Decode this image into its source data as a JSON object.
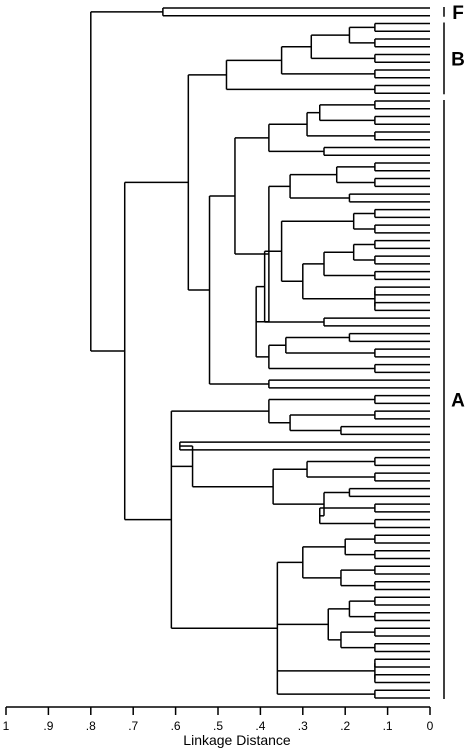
{
  "chart_data": {
    "type": "dendrogram",
    "xlabel": "Linkage Distance",
    "xlim": [
      1,
      0
    ],
    "x_ticks": [
      1,
      0.9,
      0.8,
      0.7,
      0.6,
      0.5,
      0.4,
      0.3,
      0.2,
      0.1,
      0
    ],
    "x_tick_labels": [
      "1",
      ".9",
      ".8",
      ".7",
      ".6",
      ".5",
      ".4",
      ".3",
      ".2",
      ".1",
      "0"
    ],
    "leaf_count": 90,
    "clusters": [
      {
        "label": "F",
        "leaf_range": [
          0,
          1
        ]
      },
      {
        "label": "B",
        "leaf_range": [
          2,
          11
        ]
      },
      {
        "label": "A",
        "leaf_range": [
          12,
          89
        ]
      }
    ],
    "tree": [
      0.8,
      [
        0.63,
        0,
        1
      ],
      [
        0.72,
        [
          0.57,
          [
            0.48,
            [
              0.35,
              [
                0.28,
                [
                  0.19,
                  [
                    0.13,
                    2,
                    3
                  ],
                  [
                    0.13,
                    4,
                    5
                  ]
                ],
                [
                  0.13,
                  6,
                  7
                ]
              ],
              [
                0.13,
                8,
                9
              ]
            ],
            [
              0.13,
              10,
              11
            ]
          ],
          [
            0.52,
            [
              0.46,
              [
                0.38,
                [
                  0.29,
                  [
                    0.26,
                    [
                      0.13,
                      12,
                      13
                    ],
                    [
                      0.13,
                      14,
                      15
                    ]
                  ],
                  [
                    0.13,
                    16,
                    17
                  ]
                ],
                [
                  0.25,
                  18,
                  19
                ]
              ],
              [
                0.38,
                [
                  0.33,
                  [
                    0.22,
                    [
                      0.13,
                      20,
                      21
                    ],
                    [
                      0.13,
                      22,
                      23
                    ]
                  ],
                  [
                    0.19,
                    24,
                    25
                  ]
                ],
                [
                  0.41,
                  [
                    0.39,
                    [
                      0.35,
                      [
                        0.18,
                        [
                          0.13,
                          26,
                          27
                        ],
                        [
                          0.13,
                          28,
                          29
                        ]
                      ],
                      [
                        0.3,
                        [
                          0.25,
                          [
                            0.18,
                            [
                              0.13,
                              30,
                              31
                            ],
                            [
                              0.13,
                              32,
                              33
                            ]
                          ],
                          [
                            0.13,
                            34,
                            35
                          ]
                        ],
                        [
                          0.13,
                          [
                            0.13,
                            36,
                            37
                          ],
                          [
                            0.13,
                            38,
                            39
                          ]
                        ]
                      ]
                    ],
                    [
                      0.25,
                      40,
                      41
                    ]
                  ],
                  [
                    0.38,
                    [
                      0.34,
                      [
                        0.19,
                        42,
                        43
                      ],
                      [
                        0.13,
                        44,
                        45
                      ]
                    ],
                    [
                      0.13,
                      46,
                      47
                    ]
                  ]
                ]
              ]
            ],
            [
              0.38,
              48,
              49
            ]
          ]
        ],
        [
          0.61,
          [
            0.38,
            [
              0.13,
              50,
              51
            ],
            [
              0.33,
              [
                0.13,
                52,
                53
              ],
              [
                0.21,
                54,
                55
              ]
            ]
          ],
          [
            0.56,
            [
              0.59,
              56,
              57
            ],
            [
              0.37,
              [
                0.29,
                [
                  0.13,
                  58,
                  59
                ],
                [
                  0.13,
                  60,
                  61
                ]
              ],
              [
                0.25,
                [
                  0.19,
                  62,
                  63
                ],
                [
                  0.26,
                  [
                    0.13,
                    64,
                    65
                  ],
                  [
                    0.13,
                    66,
                    67
                  ]
                ]
              ]
            ]
          ],
          [
            0.36,
            [
              0.3,
              [
                0.2,
                [
                  0.13,
                  68,
                  69
                ],
                [
                  0.13,
                  70,
                  71
                ]
              ],
              [
                0.21,
                [
                  0.13,
                  72,
                  73
                ],
                [
                  0.13,
                  74,
                  75
                ]
              ]
            ],
            [
              0.24,
              [
                0.19,
                [
                  0.13,
                  76,
                  77
                ],
                [
                  0.13,
                  78,
                  79
                ]
              ],
              [
                0.21,
                [
                  0.13,
                  80,
                  81
                ],
                [
                  0.13,
                  82,
                  83
                ]
              ]
            ],
            [
              0.13,
              [
                0.13,
                84,
                85
              ],
              [
                0.13,
                86,
                87
              ]
            ],
            [
              0.13,
              88,
              89
            ]
          ]
        ]
      ]
    ]
  }
}
